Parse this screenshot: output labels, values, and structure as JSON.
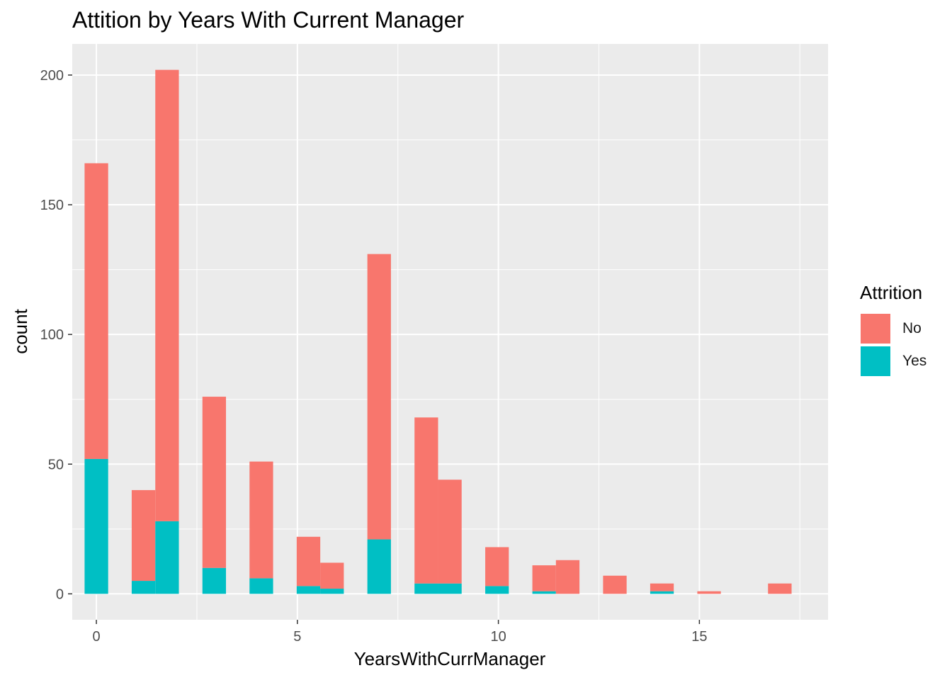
{
  "chart_data": {
    "type": "bar",
    "stacked": true,
    "title": "Attition by Years With Current Manager",
    "xlabel": "YearsWithCurrManager",
    "ylabel": "count",
    "xlim": [
      -0.6,
      18.2
    ],
    "ylim": [
      -10,
      212
    ],
    "x_ticks": [
      0,
      5,
      10,
      15
    ],
    "y_ticks": [
      0,
      50,
      100,
      150,
      200
    ],
    "bin_width": 0.5862,
    "x": [
      0,
      1.172,
      1.759,
      2.931,
      4.103,
      5.276,
      5.862,
      7.034,
      8.207,
      8.793,
      9.966,
      11.138,
      11.724,
      12.897,
      14.069,
      15.241,
      17.0
    ],
    "series": [
      {
        "name": "No",
        "color": "#F8766D",
        "values": [
          114,
          35,
          174,
          66,
          45,
          19,
          10,
          110,
          64,
          40,
          15,
          10,
          13,
          7,
          3,
          1,
          4
        ]
      },
      {
        "name": "Yes",
        "color": "#00BFC4",
        "values": [
          52,
          5,
          28,
          10,
          6,
          3,
          2,
          21,
          4,
          4,
          3,
          1,
          0,
          0,
          1,
          0,
          0
        ]
      }
    ],
    "grid": true,
    "legend_position": "right",
    "legend_title": "Attrition"
  }
}
